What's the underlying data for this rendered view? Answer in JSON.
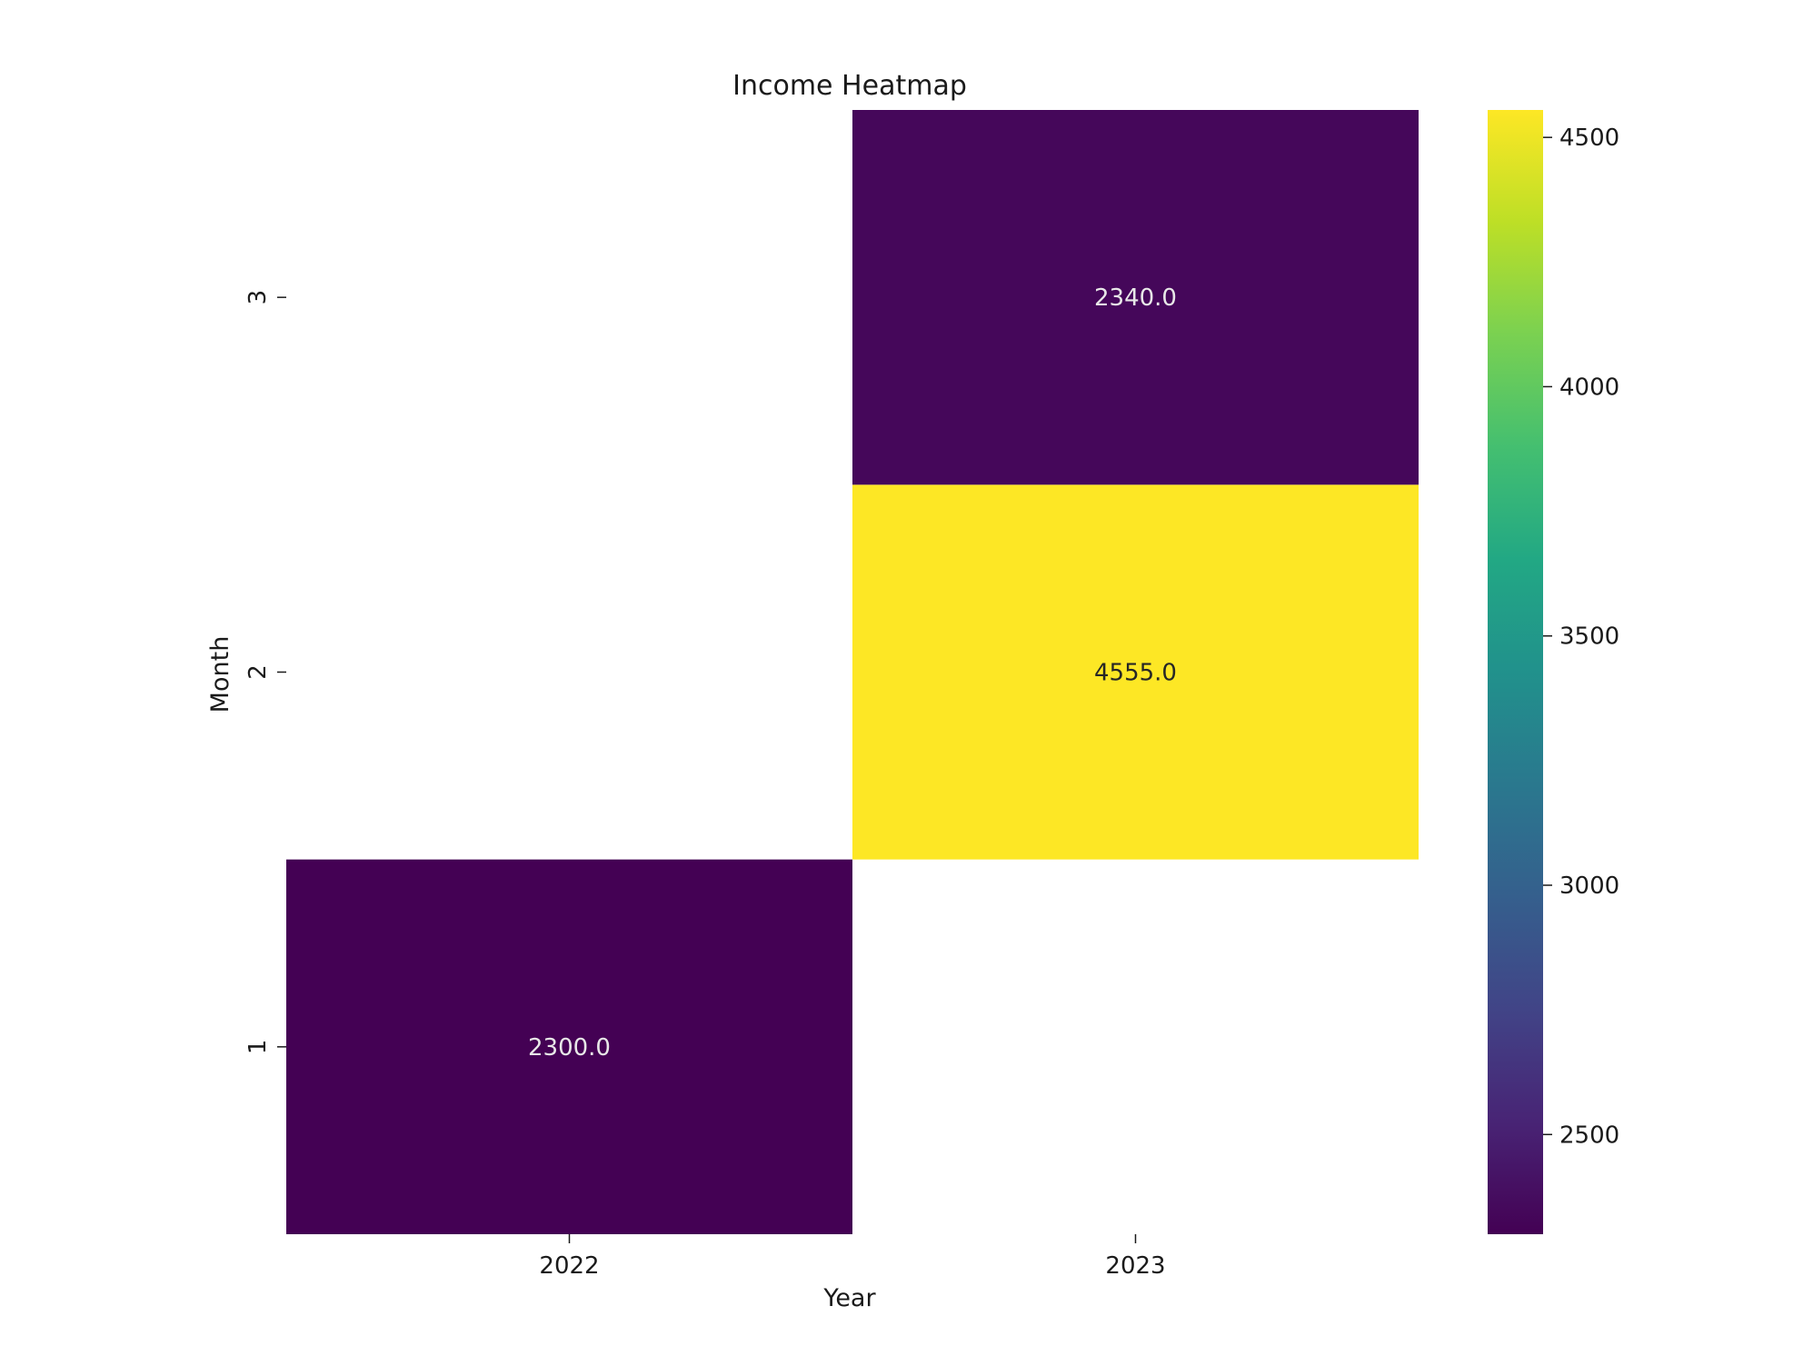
{
  "chart_data": {
    "type": "heatmap",
    "title": "Income Heatmap",
    "xlabel": "Year",
    "ylabel": "Month",
    "x_categories": [
      "2022",
      "2023"
    ],
    "y_categories": [
      "1",
      "2",
      "3"
    ],
    "cells": [
      {
        "x": "2022",
        "y": "1",
        "value": 2300.0,
        "label": "2300.0"
      },
      {
        "x": "2023",
        "y": "2",
        "value": 4555.0,
        "label": "4555.0"
      },
      {
        "x": "2023",
        "y": "3",
        "value": 2340.0,
        "label": "2340.0"
      }
    ],
    "colormap": "viridis",
    "colorbar": {
      "min": 2300,
      "max": 4555,
      "ticks": [
        2500,
        3000,
        3500,
        4000,
        4500
      ],
      "tick_labels": [
        "2500",
        "3000",
        "3500",
        "4000",
        "4500"
      ]
    },
    "colors": {
      "low": "#440154",
      "high": "#fde725",
      "label_on_dark": "#e8e8e8",
      "label_on_light": "#262626"
    }
  }
}
